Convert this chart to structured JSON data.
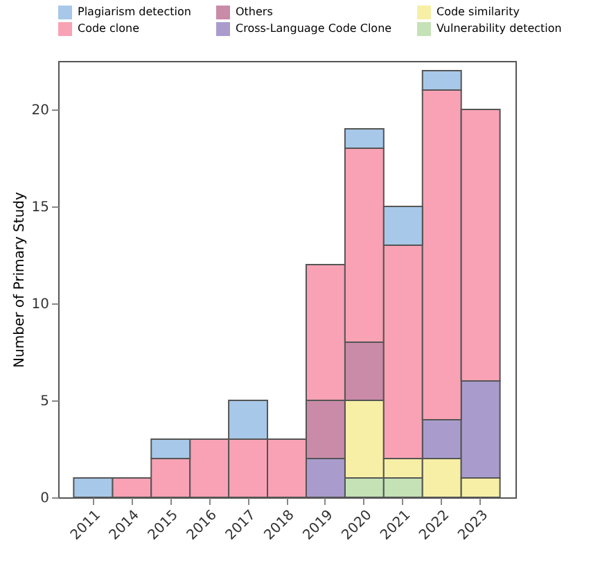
{
  "chart_data": {
    "type": "bar",
    "stacked": true,
    "ylabel": "Number of Primary Study",
    "categories": [
      "2011",
      "2014",
      "2015",
      "2016",
      "2017",
      "2018",
      "2019",
      "2020",
      "2021",
      "2022",
      "2023"
    ],
    "ylim": [
      0,
      22.5
    ],
    "yticks": [
      0,
      5,
      10,
      15,
      20
    ],
    "grid": false,
    "legend": "top",
    "series": [
      {
        "name": "Vulnerability detection",
        "color": "#c4e2b6",
        "values": [
          null,
          null,
          null,
          null,
          null,
          null,
          null,
          1,
          1,
          null,
          null
        ]
      },
      {
        "name": "Code similarity",
        "color": "#f7efa6",
        "values": [
          null,
          null,
          null,
          null,
          null,
          null,
          null,
          4,
          1,
          2,
          1
        ]
      },
      {
        "name": "Cross-Language Code Clone",
        "color": "#a99ccd",
        "values": [
          null,
          null,
          null,
          null,
          null,
          null,
          2,
          null,
          null,
          2,
          5
        ]
      },
      {
        "name": "Others",
        "color": "#c98ba8",
        "values": [
          null,
          null,
          null,
          null,
          null,
          null,
          3,
          3,
          null,
          null,
          null
        ]
      },
      {
        "name": "Code clone",
        "color": "#f9a2b5",
        "values": [
          null,
          1,
          2,
          3,
          3,
          3,
          7,
          10,
          11,
          17,
          14
        ]
      },
      {
        "name": "Plagiarism detection",
        "color": "#a7c8e8",
        "values": [
          1,
          null,
          1,
          null,
          2,
          null,
          null,
          1,
          2,
          1,
          null
        ]
      }
    ]
  }
}
